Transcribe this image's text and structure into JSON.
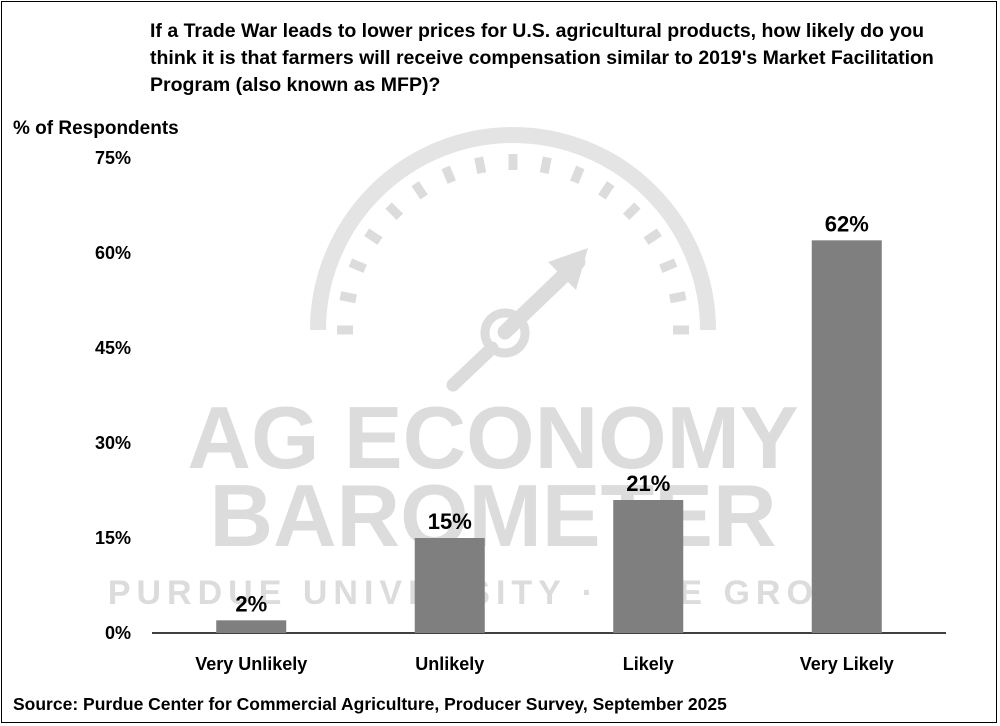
{
  "title": "If a Trade War leads to lower prices for U.S. agricultural products, how likely do you think it is that farmers will receive compensation similar to 2019's Market Facilitation Program (also known as MFP)?",
  "source": "Source: Purdue Center for Commercial Agriculture, Producer Survey, September 2025",
  "watermark": {
    "line1": "AG ECONOMY",
    "line2": "BAROMETER",
    "line3": "PURDUE UNIVERSITY · CME GROUP",
    "icon": "gauge-icon"
  },
  "chart_data": {
    "type": "bar",
    "title": "If a Trade War leads to lower prices for U.S. agricultural products, how likely do you think it is that farmers will receive compensation similar to 2019's Market Facilitation Program (also known as MFP)?",
    "ylabel": "% of Respondents",
    "xlabel": "",
    "categories": [
      "Very Unlikely",
      "Unlikely",
      "Likely",
      "Very Likely"
    ],
    "values": [
      2,
      15,
      21,
      62
    ],
    "data_labels": [
      "2%",
      "15%",
      "21%",
      "62%"
    ],
    "ylim": [
      0,
      75
    ],
    "yticks": [
      0,
      15,
      30,
      45,
      60,
      75
    ],
    "ytick_labels": [
      "0%",
      "15%",
      "30%",
      "45%",
      "60%",
      "75%"
    ],
    "grid": false,
    "legend": "none",
    "bar_color": "#7f7f7f"
  }
}
